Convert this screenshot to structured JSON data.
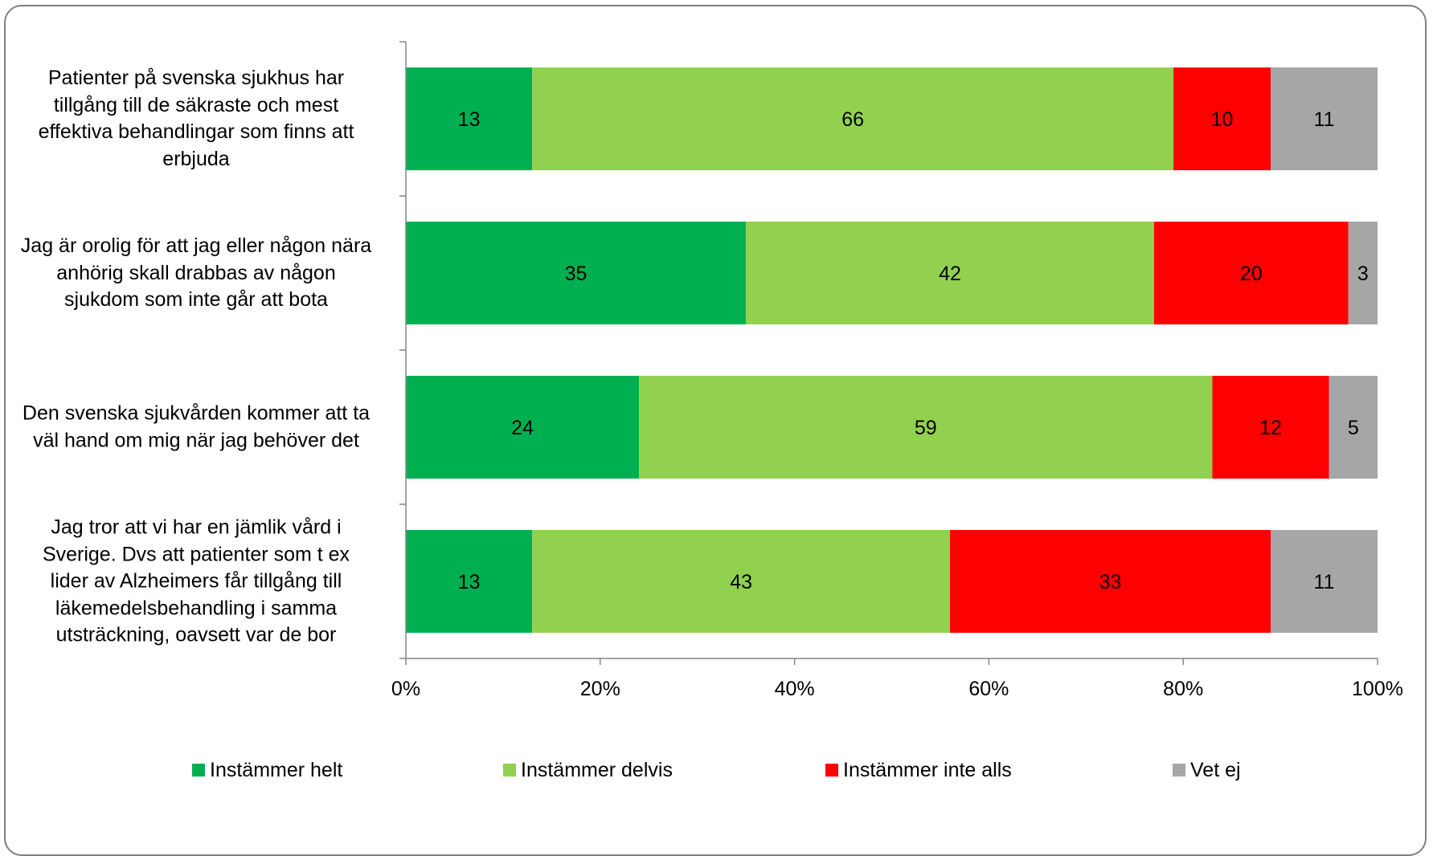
{
  "chart_data": {
    "type": "bar",
    "orientation": "horizontal",
    "stacked": "percent",
    "categories": [
      "Patienter på svenska sjukhus har tillgång till de säkraste och mest effektiva behandlingar som finns att erbjuda",
      "Jag är orolig för att jag eller någon nära anhörig skall drabbas av någon sjukdom som inte går att bota",
      "Den svenska sjukvården kommer att ta väl hand om mig när jag behöver det",
      "Jag tror att vi har en jämlik vård i Sverige. Dvs att patienter som t ex lider av Alzheimers får tillgång till läkemedelsbehandling i samma utsträckning, oavsett var de bor"
    ],
    "category_lines": [
      [
        "Patienter på svenska sjukhus har",
        "tillgång till de säkraste och mest",
        "effektiva behandlingar som finns att",
        "erbjuda"
      ],
      [
        "Jag är orolig för att jag eller någon nära",
        "anhörig skall drabbas av någon",
        "sjukdom som inte går att bota"
      ],
      [
        "Den svenska sjukvården kommer att ta",
        "väl hand om mig när jag behöver det"
      ],
      [
        "Jag tror att vi har en jämlik vård i",
        "Sverige. Dvs att patienter som t ex",
        "lider av Alzheimers får tillgång till",
        "läkemedelsbehandling i samma",
        "utsträckning, oavsett var de bor"
      ]
    ],
    "series": [
      {
        "name": "Instämmer helt",
        "color": "#00b050",
        "values": [
          13,
          35,
          24,
          13
        ]
      },
      {
        "name": "Instämmer delvis",
        "color": "#92d050",
        "values": [
          66,
          42,
          59,
          43
        ]
      },
      {
        "name": "Instämmer inte alls",
        "color": "#ff0000",
        "values": [
          10,
          20,
          12,
          33
        ]
      },
      {
        "name": "Vet ej",
        "color": "#a6a6a6",
        "values": [
          11,
          3,
          5,
          11
        ]
      }
    ],
    "xlim": [
      0,
      100
    ],
    "x_ticks": [
      "0%",
      "20%",
      "40%",
      "60%",
      "80%",
      "100%"
    ],
    "xlabel": "",
    "ylabel": "",
    "title": "",
    "grid": false,
    "legend_position": "bottom",
    "data_labels": true
  }
}
